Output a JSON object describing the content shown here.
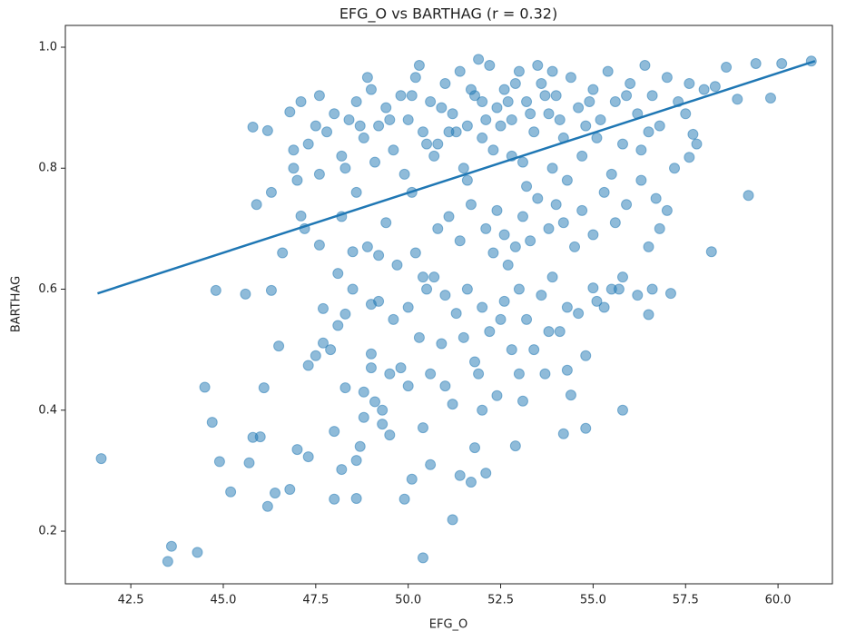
{
  "chart_data": {
    "type": "scatter",
    "title": "EFG_O vs BARTHAG  (r = 0.32)",
    "x_label": "EFG_O",
    "y_label": "BARTHAG",
    "color": "#1f77b4",
    "alpha": 0.5,
    "x": [
      41.7,
      43.5,
      43.6,
      44.3,
      50.4,
      51.2,
      44.5,
      44.7,
      44.8,
      44.9,
      45.2,
      45.6,
      45.7,
      45.8,
      46.0,
      46.1,
      46.2,
      46.3,
      46.4,
      46.5,
      46.8,
      45.8,
      46.2,
      46.3,
      46.8,
      47.0,
      47.3,
      47.3,
      47.1,
      47.6,
      47.7,
      47.7,
      47.6,
      48.0,
      48.0,
      48.1,
      48.2,
      48.3,
      48.3,
      48.5,
      48.6,
      48.6,
      48.7,
      48.8,
      49.0,
      49.0,
      49.1,
      49.2,
      49.3,
      49.5,
      49.9,
      50.1,
      50.4,
      50.6,
      51.4,
      51.7,
      51.8,
      52.1,
      52.4,
      52.9,
      53.1,
      54.3,
      54.2,
      54.4,
      55.8,
      55.8,
      55.0,
      56.5,
      57.1,
      58.2,
      59.2,
      59.8,
      60.9,
      60.1,
      59.4,
      58.9,
      58.6,
      58.3,
      57.6,
      57.7,
      57.5,
      48.5,
      49.2,
      49.5,
      49.8,
      50.0,
      50.3,
      50.5,
      50.7,
      50.9,
      51.0,
      51.2,
      51.3,
      51.5,
      51.6,
      51.8,
      52.0,
      52.2,
      52.3,
      52.5,
      52.7,
      52.8,
      53.0,
      53.2,
      53.4,
      53.6,
      53.7,
      53.9,
      54.1,
      54.3,
      54.6,
      54.8,
      55.1,
      55.5,
      55.7,
      56.2,
      56.6,
      56.8,
      56.5,
      49.0,
      49.3,
      48.8,
      48.1,
      47.9,
      47.5,
      49.6,
      50.2,
      50.8,
      51.1,
      51.4,
      51.7,
      52.1,
      52.4,
      52.6,
      52.9,
      53.1,
      53.3,
      53.5,
      53.8,
      54.0,
      54.2,
      54.5,
      54.7,
      55.0,
      55.3,
      55.6,
      55.9,
      56.3,
      56.7,
      57.0,
      57.2,
      48.2,
      48.6,
      48.9,
      49.4,
      49.7,
      50.1,
      50.4,
      47.2,
      47.0,
      47.6,
      46.9,
      46.6,
      45.9,
      52.0,
      53.0,
      51.9,
      50.6,
      54.8,
      50.0,
      53.8,
      55.3,
      52.6,
      51.0,
      47.3,
      47.5,
      47.8,
      48.0,
      48.2,
      48.4,
      48.6,
      48.8,
      49.0,
      49.2,
      49.4,
      49.6,
      49.8,
      50.0,
      50.2,
      50.4,
      50.6,
      50.8,
      51.0,
      51.2,
      51.4,
      51.6,
      51.8,
      52.0,
      52.2,
      52.4,
      52.6,
      52.8,
      53.0,
      53.2,
      53.4,
      53.6,
      53.8,
      54.0,
      54.2,
      54.4,
      54.6,
      54.8,
      55.0,
      55.2,
      55.4,
      55.6,
      55.8,
      56.0,
      56.2,
      56.4,
      56.6,
      56.8,
      57.0,
      57.3,
      57.6,
      58.0,
      48.3,
      49.1,
      49.9,
      50.7,
      51.5,
      52.3,
      53.1,
      53.9,
      54.7,
      55.5,
      56.3,
      51.9,
      50.3,
      53.5,
      52.1,
      51.3,
      52.7,
      53.3,
      50.9,
      51.7,
      52.5,
      53.7,
      54.1,
      54.9,
      49.5,
      48.7,
      50.5,
      52.9,
      53.9,
      55.1,
      55.9,
      56.5,
      57.8,
      46.9,
      47.1,
      48.9,
      50.1,
      51.1,
      52.0,
      52.8,
      54.3,
      53.2,
      51.6
    ],
    "values": [
      0.32,
      0.15,
      0.175,
      0.165,
      0.156,
      0.219,
      0.438,
      0.38,
      0.598,
      0.315,
      0.265,
      0.592,
      0.313,
      0.355,
      0.356,
      0.437,
      0.241,
      0.598,
      0.263,
      0.506,
      0.269,
      0.868,
      0.862,
      0.76,
      0.893,
      0.335,
      0.323,
      0.474,
      0.721,
      0.673,
      0.568,
      0.511,
      0.92,
      0.365,
      0.253,
      0.626,
      0.302,
      0.559,
      0.437,
      0.662,
      0.317,
      0.254,
      0.34,
      0.388,
      0.493,
      0.575,
      0.414,
      0.656,
      0.377,
      0.359,
      0.253,
      0.286,
      0.371,
      0.31,
      0.292,
      0.281,
      0.338,
      0.296,
      0.424,
      0.341,
      0.415,
      0.466,
      0.361,
      0.425,
      0.4,
      0.62,
      0.602,
      0.558,
      0.593,
      0.662,
      0.755,
      0.916,
      0.977,
      0.973,
      0.973,
      0.914,
      0.967,
      0.935,
      0.818,
      0.856,
      0.89,
      0.6,
      0.58,
      0.46,
      0.47,
      0.44,
      0.52,
      0.6,
      0.62,
      0.51,
      0.44,
      0.41,
      0.56,
      0.52,
      0.6,
      0.48,
      0.57,
      0.53,
      0.66,
      0.55,
      0.64,
      0.5,
      0.6,
      0.55,
      0.5,
      0.59,
      0.46,
      0.62,
      0.53,
      0.57,
      0.56,
      0.49,
      0.58,
      0.6,
      0.6,
      0.59,
      0.6,
      0.7,
      0.67,
      0.47,
      0.4,
      0.43,
      0.54,
      0.5,
      0.49,
      0.55,
      0.66,
      0.7,
      0.72,
      0.68,
      0.74,
      0.7,
      0.73,
      0.69,
      0.67,
      0.72,
      0.68,
      0.75,
      0.7,
      0.74,
      0.71,
      0.67,
      0.73,
      0.69,
      0.76,
      0.71,
      0.74,
      0.78,
      0.75,
      0.73,
      0.8,
      0.72,
      0.76,
      0.67,
      0.71,
      0.64,
      0.76,
      0.62,
      0.7,
      0.78,
      0.79,
      0.8,
      0.66,
      0.74,
      0.4,
      0.46,
      0.46,
      0.46,
      0.37,
      0.57,
      0.53,
      0.57,
      0.58,
      0.59,
      0.84,
      0.87,
      0.86,
      0.89,
      0.82,
      0.88,
      0.91,
      0.85,
      0.93,
      0.87,
      0.9,
      0.83,
      0.92,
      0.88,
      0.95,
      0.86,
      0.91,
      0.84,
      0.94,
      0.89,
      0.96,
      0.87,
      0.92,
      0.85,
      0.97,
      0.9,
      0.93,
      0.88,
      0.96,
      0.91,
      0.86,
      0.94,
      0.89,
      0.92,
      0.85,
      0.95,
      0.9,
      0.87,
      0.93,
      0.88,
      0.96,
      0.91,
      0.84,
      0.94,
      0.89,
      0.97,
      0.92,
      0.87,
      0.95,
      0.91,
      0.94,
      0.93,
      0.8,
      0.81,
      0.79,
      0.82,
      0.8,
      0.83,
      0.81,
      0.8,
      0.82,
      0.79,
      0.83,
      0.98,
      0.97,
      0.97,
      0.88,
      0.86,
      0.91,
      0.89,
      0.9,
      0.93,
      0.87,
      0.92,
      0.88,
      0.91,
      0.88,
      0.87,
      0.84,
      0.94,
      0.96,
      0.85,
      0.92,
      0.86,
      0.84,
      0.83,
      0.91,
      0.95,
      0.92,
      0.86,
      0.91,
      0.82,
      0.78,
      0.77,
      0.78
    ],
    "trend_line": {
      "x": [
        41.6,
        61.0
      ],
      "values": [
        0.593,
        0.977
      ],
      "color": "#1f77b4"
    },
    "xlim": [
      40.73,
      61.47
    ],
    "ylim": [
      0.113,
      1.036
    ],
    "xticks": [
      42.5,
      {
        "value": 45.0,
        "label": "45.0"
      },
      47.5,
      {
        "value": 50.0,
        "label": "50.0"
      },
      52.5,
      {
        "value": 55.0,
        "label": "55.0"
      },
      57.5,
      {
        "value": 60.0,
        "label": "60.0"
      }
    ],
    "yticks": [
      0.2,
      0.4,
      0.6,
      0.8,
      {
        "value": 1.0,
        "label": "1.0"
      }
    ],
    "grid": false
  }
}
